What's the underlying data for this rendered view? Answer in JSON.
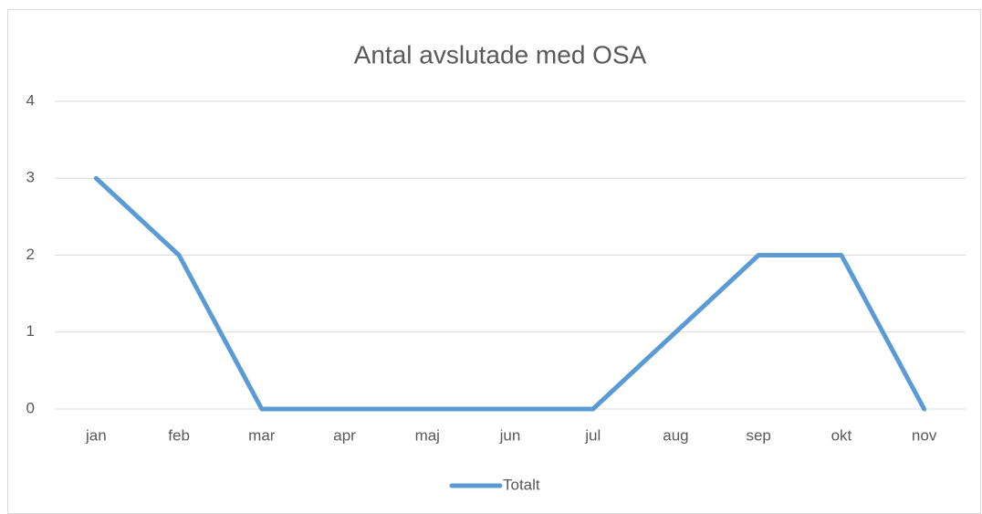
{
  "chart_data": {
    "type": "line",
    "title": "Antal avslutade med OSA",
    "categories": [
      "jan",
      "feb",
      "mar",
      "apr",
      "maj",
      "jun",
      "jul",
      "aug",
      "sep",
      "okt",
      "nov"
    ],
    "series": [
      {
        "name": "Totalt",
        "color": "#5b9bd5",
        "values": [
          3,
          2,
          0,
          0,
          0,
          0,
          0,
          1,
          2,
          2,
          0
        ]
      }
    ],
    "ylim": [
      0,
      4
    ],
    "yticks": [
      0,
      1,
      2,
      3,
      4
    ],
    "grid": true,
    "legend": "bottom"
  }
}
